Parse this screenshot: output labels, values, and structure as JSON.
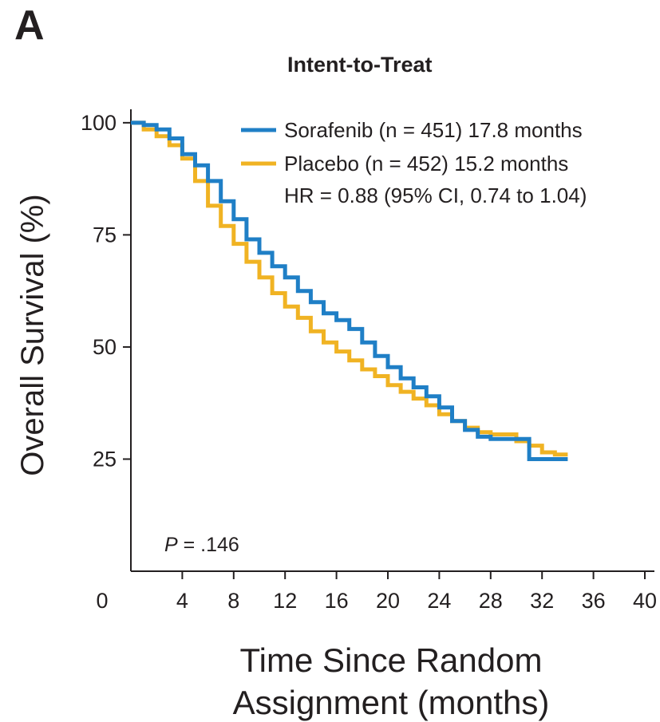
{
  "panel_label": "A",
  "chart_data": {
    "type": "line",
    "title": "Intent-to-Treat",
    "xlabel_lines": [
      "Time Since Random",
      "Assignment (months)"
    ],
    "ylabel": "Overall Survival (%)",
    "x_ticks": [
      0,
      4,
      8,
      12,
      16,
      20,
      24,
      28,
      32,
      36,
      40
    ],
    "y_ticks": [
      100,
      75,
      50,
      25
    ],
    "xlim": [
      0,
      40
    ],
    "ylim": [
      0,
      103
    ],
    "grid": false,
    "legend_position": "top-right",
    "annotation": {
      "p_italic": "P",
      "p_rest": " = .146"
    },
    "hr_text": "HR = 0.88 (95% CI, 0.74 to 1.04)",
    "series": [
      {
        "name": "Sorafenib (n = 451) 17.8 months",
        "color": "#1f7fc6",
        "points": [
          [
            0,
            100
          ],
          [
            1,
            99.5
          ],
          [
            2,
            98.5
          ],
          [
            3,
            96.5
          ],
          [
            4,
            93
          ],
          [
            5,
            90.5
          ],
          [
            6,
            87
          ],
          [
            7,
            82.5
          ],
          [
            8,
            78.5
          ],
          [
            9,
            74
          ],
          [
            10,
            71
          ],
          [
            11,
            68
          ],
          [
            12,
            65.5
          ],
          [
            13,
            62.5
          ],
          [
            14,
            60
          ],
          [
            15,
            57.5
          ],
          [
            16,
            56
          ],
          [
            17,
            54
          ],
          [
            18,
            51
          ],
          [
            19,
            48
          ],
          [
            20,
            45.5
          ],
          [
            21,
            43
          ],
          [
            22,
            41
          ],
          [
            23,
            39
          ],
          [
            24,
            36.5
          ],
          [
            25,
            33.5
          ],
          [
            26,
            31.5
          ],
          [
            27,
            30
          ],
          [
            28,
            29.5
          ],
          [
            29,
            29.5
          ],
          [
            30,
            29.5
          ],
          [
            31,
            29.5
          ],
          [
            31,
            25
          ],
          [
            34,
            25
          ]
        ]
      },
      {
        "name": "Placebo (n = 452) 15.2 months",
        "color": "#f0b323",
        "points": [
          [
            0,
            100
          ],
          [
            1,
            98.5
          ],
          [
            2,
            97
          ],
          [
            3,
            95
          ],
          [
            4,
            92
          ],
          [
            5,
            87
          ],
          [
            6,
            81.5
          ],
          [
            7,
            77
          ],
          [
            8,
            73
          ],
          [
            9,
            69
          ],
          [
            10,
            65.5
          ],
          [
            11,
            62
          ],
          [
            12,
            59
          ],
          [
            13,
            56.5
          ],
          [
            14,
            53.5
          ],
          [
            15,
            51
          ],
          [
            16,
            49
          ],
          [
            17,
            47
          ],
          [
            18,
            45
          ],
          [
            19,
            43.5
          ],
          [
            20,
            41.5
          ],
          [
            21,
            40
          ],
          [
            22,
            38.5
          ],
          [
            23,
            37
          ],
          [
            24,
            35
          ],
          [
            25,
            33.5
          ],
          [
            26,
            32
          ],
          [
            27,
            31
          ],
          [
            28,
            30.5
          ],
          [
            29,
            30.5
          ],
          [
            30,
            29
          ],
          [
            31,
            28
          ],
          [
            32,
            26.5
          ],
          [
            33,
            26
          ],
          [
            34,
            26
          ]
        ]
      }
    ]
  }
}
